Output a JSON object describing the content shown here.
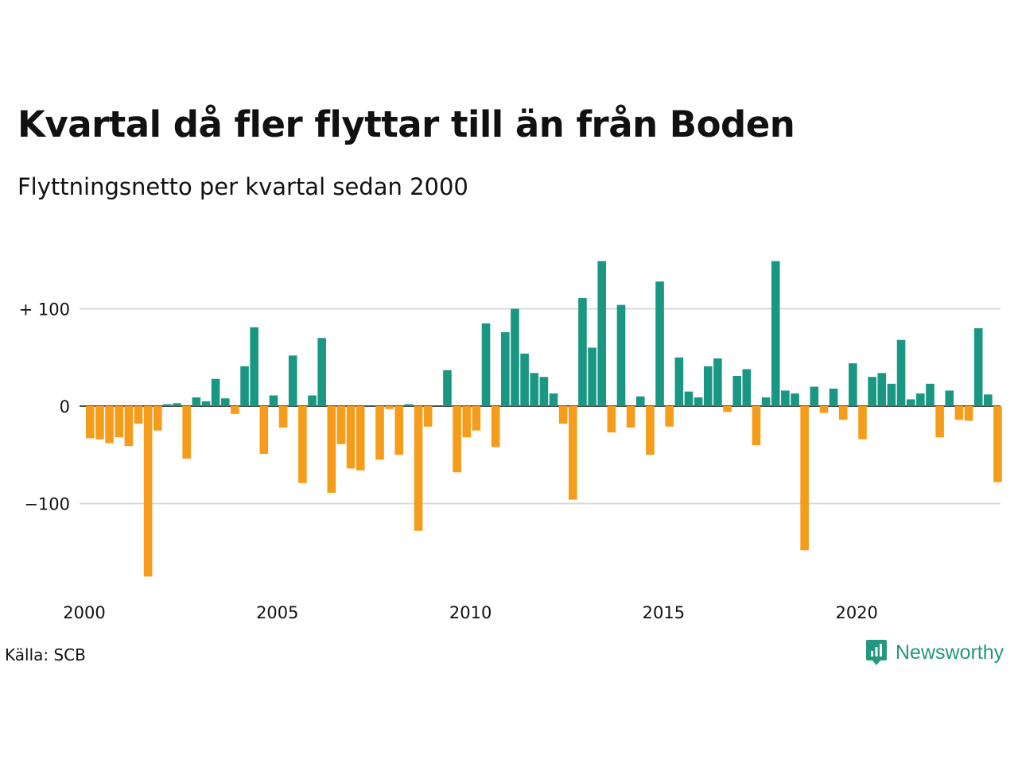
{
  "title": "Kvartal då fler flyttar till än från Boden",
  "subtitle": "Flyttningsnetto per kvartal sedan 2000",
  "source": "Källa: SCB",
  "brand": {
    "name": "Newsworthy",
    "icon": "newsworthy-logo-icon"
  },
  "colors": {
    "positive": "#1a9783",
    "negative": "#f59c1a",
    "grid": "#d9d9d9"
  },
  "chart_data": {
    "type": "bar",
    "y_ticks": [
      {
        "value": 100,
        "label": "+ 100"
      },
      {
        "value": 0,
        "label": "0"
      },
      {
        "value": -100,
        "label": "−100"
      }
    ],
    "x_ticks": [
      {
        "year": 2000,
        "label": "2000"
      },
      {
        "year": 2005,
        "label": "2005"
      },
      {
        "year": 2010,
        "label": "2010"
      },
      {
        "year": 2015,
        "label": "2015"
      },
      {
        "year": 2020,
        "label": "2020"
      }
    ],
    "ylim": [
      -180,
      150
    ],
    "grid": true,
    "start": "2000 Q1",
    "values": [
      -33,
      -34,
      -38,
      -32,
      -41,
      -18,
      -175,
      -25,
      2,
      3,
      -54,
      9,
      5,
      28,
      8,
      -8,
      41,
      81,
      -49,
      11,
      -22,
      52,
      -79,
      11,
      70,
      -89,
      -39,
      -64,
      -66,
      0,
      -55,
      -3,
      -50,
      2,
      -128,
      -21,
      0,
      37,
      -68,
      -32,
      -25,
      85,
      -42,
      76,
      100,
      54,
      34,
      30,
      13,
      -18,
      -96,
      111,
      60,
      149,
      -27,
      104,
      -22,
      10,
      -50,
      128,
      -21,
      50,
      15,
      9,
      41,
      49,
      -6,
      31,
      38,
      -40,
      9,
      149,
      16,
      13,
      -148,
      20,
      -7,
      18,
      -14,
      44,
      -34,
      30,
      34,
      23,
      68,
      7,
      13,
      23,
      -32,
      16,
      -14,
      -15,
      80,
      12,
      -78
    ]
  }
}
